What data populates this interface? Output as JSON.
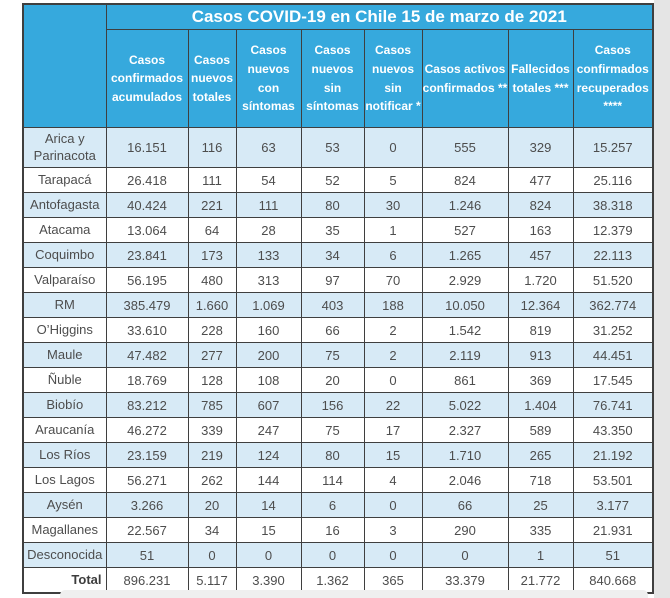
{
  "colors": {
    "header_blue": "#36a9dd",
    "row_alt_blue": "#d7eaf6",
    "row_white": "#ffffff",
    "border": "#3f3f3f",
    "header_text": "#ffffff",
    "body_text": "#4d4d4d",
    "scrollbar_track": "#e5e5e5"
  },
  "table": {
    "title": "Casos COVID-19 en Chile 15 de marzo de 2021",
    "columns": [
      "Casos confirmados acumulados",
      "Casos nuevos totales",
      "Casos nuevos con síntomas",
      "Casos nuevos sin síntomas",
      "Casos nuevos sin notificar *",
      "Casos activos confirmados **",
      "Fallecidos totales ***",
      "Casos confirmados recuperados ****"
    ],
    "rows": [
      {
        "region": "Arica y Parinacota",
        "values": [
          "16.151",
          "116",
          "63",
          "53",
          "0",
          "555",
          "329",
          "15.257"
        ],
        "shaded": true
      },
      {
        "region": "Tarapacá",
        "values": [
          "26.418",
          "111",
          "54",
          "52",
          "5",
          "824",
          "477",
          "25.116"
        ],
        "shaded": false
      },
      {
        "region": "Antofagasta",
        "values": [
          "40.424",
          "221",
          "111",
          "80",
          "30",
          "1.246",
          "824",
          "38.318"
        ],
        "shaded": true
      },
      {
        "region": "Atacama",
        "values": [
          "13.064",
          "64",
          "28",
          "35",
          "1",
          "527",
          "163",
          "12.379"
        ],
        "shaded": false
      },
      {
        "region": "Coquimbo",
        "values": [
          "23.841",
          "173",
          "133",
          "34",
          "6",
          "1.265",
          "457",
          "22.113"
        ],
        "shaded": true
      },
      {
        "region": "Valparaíso",
        "values": [
          "56.195",
          "480",
          "313",
          "97",
          "70",
          "2.929",
          "1.720",
          "51.520"
        ],
        "shaded": false
      },
      {
        "region": "RM",
        "values": [
          "385.479",
          "1.660",
          "1.069",
          "403",
          "188",
          "10.050",
          "12.364",
          "362.774"
        ],
        "shaded": true
      },
      {
        "region": "O’Higgins",
        "values": [
          "33.610",
          "228",
          "160",
          "66",
          "2",
          "1.542",
          "819",
          "31.252"
        ],
        "shaded": false
      },
      {
        "region": "Maule",
        "values": [
          "47.482",
          "277",
          "200",
          "75",
          "2",
          "2.119",
          "913",
          "44.451"
        ],
        "shaded": true
      },
      {
        "region": "Ñuble",
        "values": [
          "18.769",
          "128",
          "108",
          "20",
          "0",
          "861",
          "369",
          "17.545"
        ],
        "shaded": false
      },
      {
        "region": "Biobío",
        "values": [
          "83.212",
          "785",
          "607",
          "156",
          "22",
          "5.022",
          "1.404",
          "76.741"
        ],
        "shaded": true
      },
      {
        "region": "Araucanía",
        "values": [
          "46.272",
          "339",
          "247",
          "75",
          "17",
          "2.327",
          "589",
          "43.350"
        ],
        "shaded": false
      },
      {
        "region": "Los Ríos",
        "values": [
          "23.159",
          "219",
          "124",
          "80",
          "15",
          "1.710",
          "265",
          "21.192"
        ],
        "shaded": true
      },
      {
        "region": "Los Lagos",
        "values": [
          "56.271",
          "262",
          "144",
          "114",
          "4",
          "2.046",
          "718",
          "53.501"
        ],
        "shaded": false
      },
      {
        "region": "Aysén",
        "values": [
          "3.266",
          "20",
          "14",
          "6",
          "0",
          "66",
          "25",
          "3.177"
        ],
        "shaded": true
      },
      {
        "region": "Magallanes",
        "values": [
          "22.567",
          "34",
          "15",
          "16",
          "3",
          "290",
          "335",
          "21.931"
        ],
        "shaded": false
      },
      {
        "region": "Desconocida",
        "values": [
          "51",
          "0",
          "0",
          "0",
          "0",
          "0",
          "1",
          "51"
        ],
        "shaded": true
      },
      {
        "region": "Total",
        "values": [
          "896.231",
          "5.117",
          "3.390",
          "1.362",
          "365",
          "33.379",
          "21.772",
          "840.668"
        ],
        "shaded": false,
        "total": true
      }
    ]
  }
}
